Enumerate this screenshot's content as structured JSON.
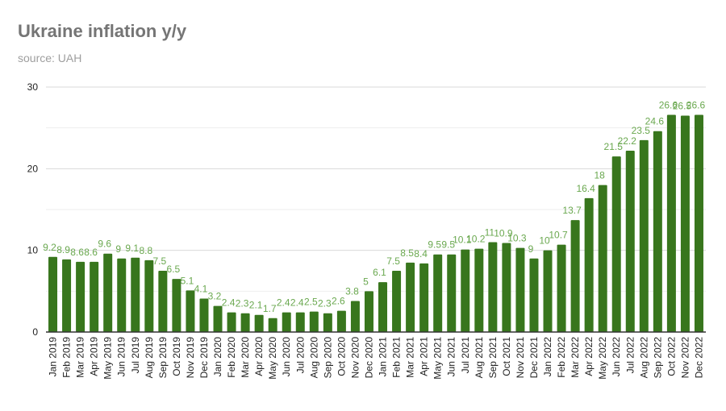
{
  "chart_data": {
    "type": "bar",
    "title": "Ukraine inflation y/y",
    "subtitle": "source: UAH",
    "xlabel": "",
    "ylabel": "",
    "ylim": [
      0,
      30
    ],
    "yticks": [
      0,
      10,
      20,
      30
    ],
    "grid": true,
    "legend": "none",
    "bar_color": "#38761d",
    "label_color": "#6aa84f",
    "categories": [
      "Jan 2019",
      "Feb 2019",
      "Mar 2019",
      "Apr 2019",
      "May 2019",
      "Jun 2019",
      "Jul 2019",
      "Aug 2019",
      "Sep 2019",
      "Oct 2019",
      "Nov 2019",
      "Dec 2019",
      "Jan 2020",
      "Feb 2020",
      "Mar 2020",
      "Apr 2020",
      "May 2020",
      "Jun 2020",
      "Jul 2020",
      "Aug 2020",
      "Sep 2020",
      "Oct 2020",
      "Nov 2020",
      "Dec 2020",
      "Jan 2021",
      "Feb 2021",
      "Mar 2021",
      "Apr 2021",
      "May 2021",
      "Jun 2021",
      "Jul 2021",
      "Aug 2021",
      "Sep 2021",
      "Oct 2021",
      "Nov 2021",
      "Dec 2021",
      "Jan 2022",
      "Feb 2022",
      "Mar 2022",
      "Apr 2022",
      "May 2022",
      "Jun 2022",
      "Jul 2022",
      "Aug 2022",
      "Sep 2022",
      "Oct 2022",
      "Nov 2022",
      "Dec 2022"
    ],
    "values": [
      9.2,
      8.9,
      8.6,
      8.6,
      9.6,
      9,
      9.1,
      8.8,
      7.5,
      6.5,
      5.1,
      4.1,
      3.2,
      2.4,
      2.3,
      2.1,
      1.7,
      2.4,
      2.4,
      2.5,
      2.3,
      2.6,
      3.8,
      5,
      6.1,
      7.5,
      8.5,
      8.4,
      9.5,
      9.5,
      10.1,
      10.2,
      11,
      10.9,
      10.3,
      9,
      10,
      10.7,
      13.7,
      16.4,
      18,
      21.5,
      22.2,
      23.5,
      24.6,
      26.6,
      26.5,
      26.6
    ]
  }
}
